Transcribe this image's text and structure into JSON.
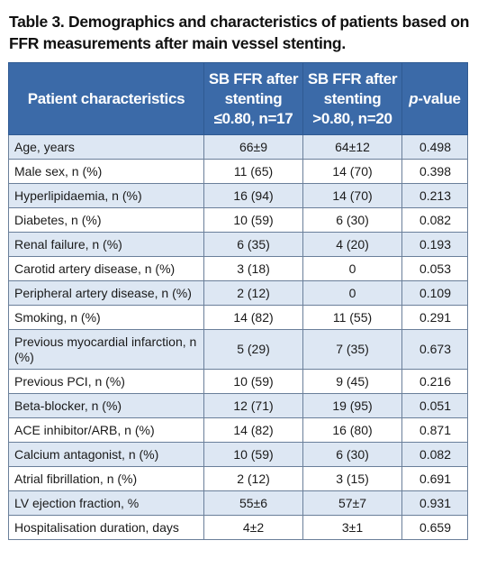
{
  "caption": "Table 3. Demographics and characteristics of patients based on FFR measurements after main vessel stenting.",
  "headers": {
    "characteristics": "Patient characteristics",
    "group1": "SB FFR after stenting ≤0.80, n=17",
    "group2": "SB FFR after stenting >0.80, n=20",
    "p_prefix": "p",
    "p_suffix": "-value"
  },
  "rows": [
    {
      "label": "Age, years",
      "g1": "66±9",
      "g2": "64±12",
      "p": "0.498"
    },
    {
      "label": "Male sex, n (%)",
      "g1": "11 (65)",
      "g2": "14 (70)",
      "p": "0.398"
    },
    {
      "label": "Hyperlipidaemia, n (%)",
      "g1": "16 (94)",
      "g2": "14 (70)",
      "p": "0.213"
    },
    {
      "label": "Diabetes, n (%)",
      "g1": "10 (59)",
      "g2": "6 (30)",
      "p": "0.082"
    },
    {
      "label": "Renal failure, n (%)",
      "g1": "6 (35)",
      "g2": "4 (20)",
      "p": "0.193"
    },
    {
      "label": "Carotid artery disease, n (%)",
      "g1": "3 (18)",
      "g2": "0",
      "p": "0.053"
    },
    {
      "label": "Peripheral artery disease, n (%)",
      "g1": "2 (12)",
      "g2": "0",
      "p": "0.109"
    },
    {
      "label": "Smoking, n (%)",
      "g1": "14 (82)",
      "g2": "11 (55)",
      "p": "0.291"
    },
    {
      "label": "Previous myocardial infarction, n (%)",
      "g1": "5 (29)",
      "g2": "7 (35)",
      "p": "0.673"
    },
    {
      "label": "Previous PCI, n (%)",
      "g1": "10 (59)",
      "g2": "9 (45)",
      "p": "0.216"
    },
    {
      "label": "Beta-blocker, n (%)",
      "g1": "12 (71)",
      "g2": "19 (95)",
      "p": "0.051"
    },
    {
      "label": "ACE inhibitor/ARB, n (%)",
      "g1": "14 (82)",
      "g2": "16 (80)",
      "p": "0.871"
    },
    {
      "label": "Calcium antagonist, n (%)",
      "g1": "10 (59)",
      "g2": "6 (30)",
      "p": "0.082"
    },
    {
      "label": "Atrial fibrillation, n (%)",
      "g1": "2 (12)",
      "g2": "3 (15)",
      "p": "0.691"
    },
    {
      "label": "LV ejection fraction, %",
      "g1": "55±6",
      "g2": "57±7",
      "p": "0.931"
    },
    {
      "label": "Hospitalisation duration, days",
      "g1": "4±2",
      "g2": "3±1",
      "p": "0.659"
    }
  ],
  "colors": {
    "header_bg": "#3b6aa8",
    "header_text": "#ffffff",
    "stripe_bg": "#dde7f3",
    "row_bg": "#ffffff"
  }
}
